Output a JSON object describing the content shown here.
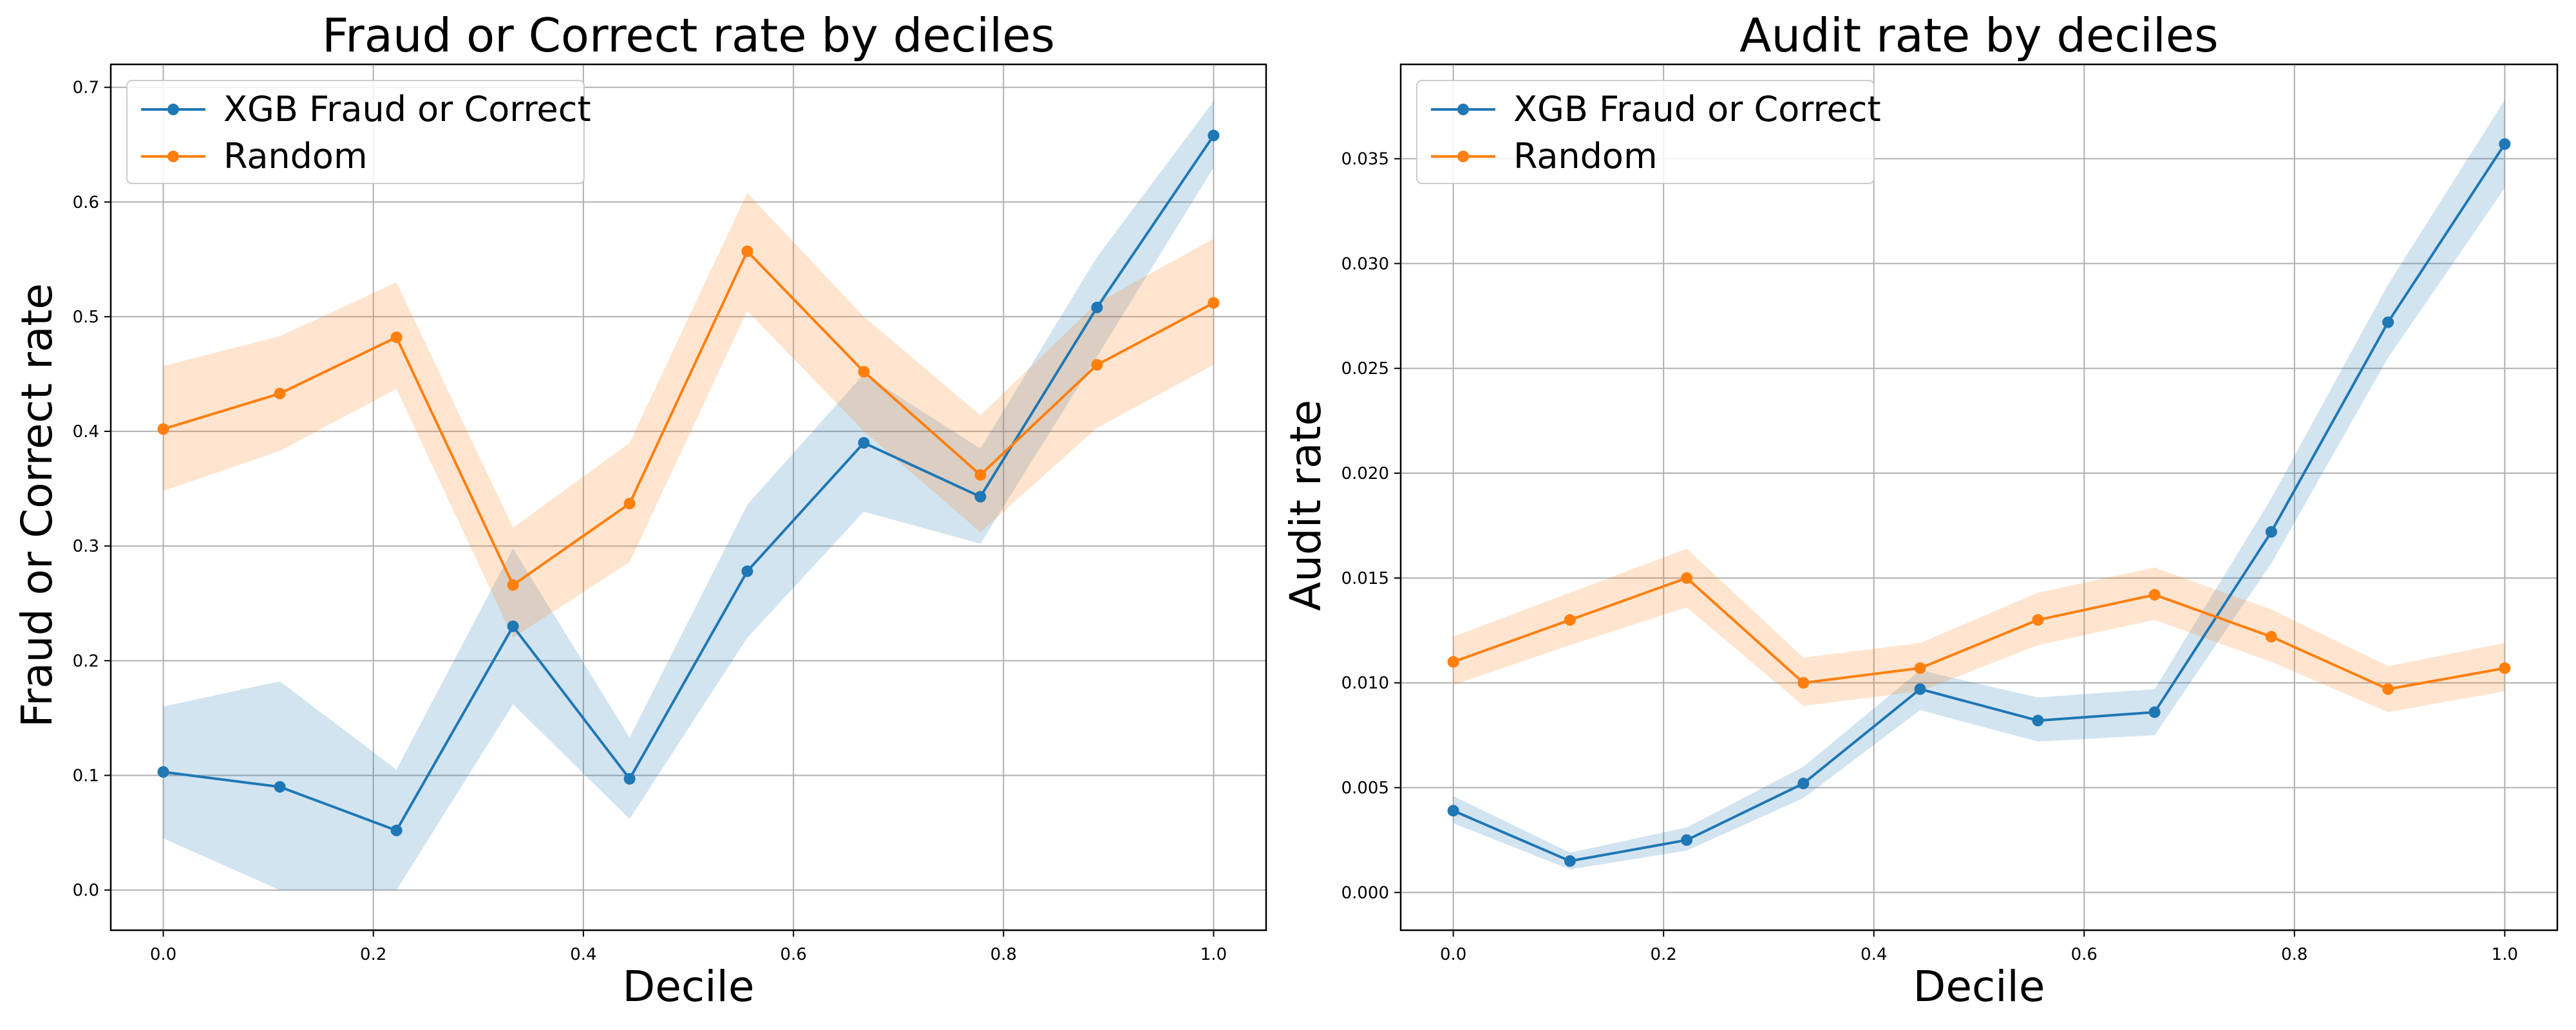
{
  "chart_data": [
    {
      "type": "line",
      "title": "Fraud or Correct rate by deciles",
      "xlabel": "Decile",
      "ylabel": "Fraud or Correct rate",
      "xlim": [
        -0.05,
        1.05
      ],
      "ylim": [
        -0.035,
        0.72
      ],
      "xticks": [
        "0.0",
        "0.2",
        "0.4",
        "0.6",
        "0.8",
        "1.0"
      ],
      "yticks": [
        "0.0",
        "0.1",
        "0.2",
        "0.3",
        "0.4",
        "0.5",
        "0.6",
        "0.7"
      ],
      "grid": true,
      "legend": "upper-left",
      "x": [
        0.0,
        0.111,
        0.222,
        0.333,
        0.444,
        0.556,
        0.667,
        0.778,
        0.889,
        1.0
      ],
      "series": [
        {
          "name": "XGB Fraud or Correct",
          "color": "#1f77b4",
          "values": [
            0.103,
            0.09,
            0.052,
            0.23,
            0.097,
            0.278,
            0.39,
            0.343,
            0.508,
            0.658
          ],
          "lower": [
            0.045,
            0.0,
            0.0,
            0.162,
            0.062,
            0.22,
            0.33,
            0.302,
            0.465,
            0.63
          ],
          "upper": [
            0.16,
            0.182,
            0.105,
            0.298,
            0.133,
            0.336,
            0.45,
            0.385,
            0.552,
            0.688
          ]
        },
        {
          "name": "Random",
          "color": "#ff7f0e",
          "values": [
            0.402,
            0.433,
            0.482,
            0.266,
            0.337,
            0.557,
            0.452,
            0.362,
            0.458,
            0.512
          ],
          "lower": [
            0.348,
            0.383,
            0.437,
            0.22,
            0.286,
            0.505,
            0.4,
            0.312,
            0.403,
            0.458
          ],
          "upper": [
            0.457,
            0.483,
            0.53,
            0.316,
            0.39,
            0.608,
            0.5,
            0.414,
            0.512,
            0.568
          ]
        }
      ]
    },
    {
      "type": "line",
      "title": "Audit rate by deciles",
      "xlabel": "Decile",
      "ylabel": "Audit rate",
      "xlim": [
        -0.05,
        1.05
      ],
      "ylim": [
        -0.0018,
        0.0395
      ],
      "xticks": [
        "0.0",
        "0.2",
        "0.4",
        "0.6",
        "0.8",
        "1.0"
      ],
      "yticks": [
        "0.000",
        "0.005",
        "0.010",
        "0.015",
        "0.020",
        "0.025",
        "0.030",
        "0.035"
      ],
      "grid": true,
      "legend": "upper-left",
      "x": [
        0.0,
        0.111,
        0.222,
        0.333,
        0.444,
        0.556,
        0.667,
        0.778,
        0.889,
        1.0
      ],
      "series": [
        {
          "name": "XGB Fraud or Correct",
          "color": "#1f77b4",
          "values": [
            0.0039,
            0.0015,
            0.0025,
            0.0052,
            0.0097,
            0.0082,
            0.0086,
            0.0172,
            0.0272,
            0.0357
          ],
          "lower": [
            0.0033,
            0.0011,
            0.002,
            0.0045,
            0.0087,
            0.0072,
            0.0075,
            0.0157,
            0.0255,
            0.0336
          ],
          "upper": [
            0.0046,
            0.0019,
            0.0031,
            0.006,
            0.0106,
            0.0093,
            0.0097,
            0.0188,
            0.029,
            0.0378
          ]
        },
        {
          "name": "Random",
          "color": "#ff7f0e",
          "values": [
            0.011,
            0.013,
            0.015,
            0.01,
            0.0107,
            0.013,
            0.0142,
            0.0122,
            0.0097,
            0.0107
          ],
          "lower": [
            0.0099,
            0.0118,
            0.0136,
            0.0089,
            0.0096,
            0.0118,
            0.013,
            0.011,
            0.0086,
            0.0096
          ],
          "upper": [
            0.0122,
            0.0143,
            0.0164,
            0.0112,
            0.0119,
            0.0143,
            0.0155,
            0.0135,
            0.0108,
            0.0119
          ]
        }
      ]
    }
  ]
}
